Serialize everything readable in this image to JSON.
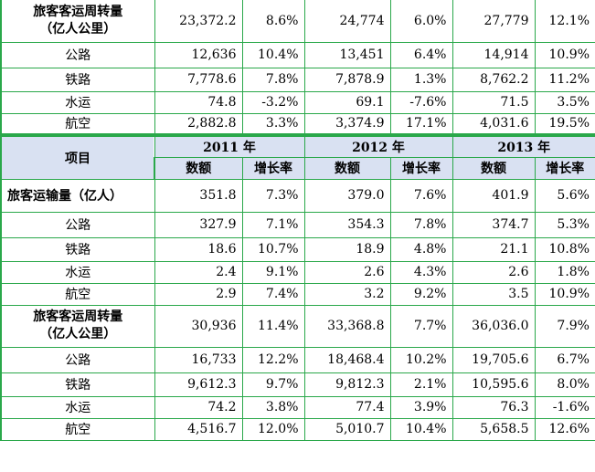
{
  "top_rows": [
    {
      "label": "旅客客运周转量\n（亿人公里）",
      "type": "group2",
      "v": [
        "23,372.2",
        "8.6%",
        "24,774",
        "6.0%",
        "27,779",
        "12.1%"
      ]
    },
    {
      "label": "公路",
      "type": "sub",
      "v": [
        "12,636",
        "10.4%",
        "13,451",
        "6.4%",
        "14,914",
        "10.9%"
      ]
    },
    {
      "label": "铁路",
      "type": "sub",
      "v": [
        "7,778.6",
        "7.8%",
        "7,878.9",
        "1.3%",
        "8,762.2",
        "11.2%"
      ]
    },
    {
      "label": "水运",
      "type": "sub",
      "v": [
        "74.8",
        "-3.2%",
        "69.1",
        "-7.6%",
        "71.5",
        "3.5%"
      ]
    },
    {
      "label": "航空",
      "type": "sub",
      "v": [
        "2,882.8",
        "3.3%",
        "3,374.9",
        "17.1%",
        "4,031.6",
        "19.5%"
      ]
    }
  ],
  "header": {
    "item": "项目",
    "years": [
      "2011 年",
      "2012 年",
      "2013 年"
    ],
    "amount": "数额",
    "growth": "增长率"
  },
  "bottom_rows": [
    {
      "label": "旅客运输量（亿人）",
      "type": "group1",
      "v": [
        "351.8",
        "7.3%",
        "379.0",
        "7.6%",
        "401.9",
        "5.6%"
      ]
    },
    {
      "label": "公路",
      "type": "sub",
      "v": [
        "327.9",
        "7.1%",
        "354.3",
        "7.8%",
        "374.7",
        "5.3%"
      ]
    },
    {
      "label": "铁路",
      "type": "sub",
      "v": [
        "18.6",
        "10.7%",
        "18.9",
        "4.8%",
        "21.1",
        "10.8%"
      ]
    },
    {
      "label": "水运",
      "type": "sub",
      "v": [
        "2.4",
        "9.1%",
        "2.6",
        "4.3%",
        "2.6",
        "1.8%"
      ]
    },
    {
      "label": "航空",
      "type": "sub",
      "v": [
        "2.9",
        "7.4%",
        "3.2",
        "9.2%",
        "3.5",
        "10.9%"
      ]
    },
    {
      "label": "旅客客运周转量\n（亿人公里）",
      "type": "group2",
      "v": [
        "30,936",
        "11.4%",
        "33,368.8",
        "7.7%",
        "36,036.0",
        "7.9%"
      ]
    },
    {
      "label": "公路",
      "type": "sub",
      "v": [
        "16,733",
        "12.2%",
        "18,468.4",
        "10.2%",
        "19,705.6",
        "6.7%"
      ]
    },
    {
      "label": "铁路",
      "type": "sub",
      "v": [
        "9,612.3",
        "9.7%",
        "9,812.3",
        "2.1%",
        "10,595.6",
        "8.0%"
      ]
    },
    {
      "label": "水运",
      "type": "sub",
      "v": [
        "74.2",
        "3.8%",
        "77.4",
        "3.9%",
        "76.3",
        "-1.6%"
      ]
    },
    {
      "label": "航空",
      "type": "sub",
      "v": [
        "4,516.7",
        "12.0%",
        "5,010.7",
        "10.4%",
        "5,658.5",
        "12.6%"
      ]
    }
  ],
  "colors": {
    "border": "#2aa84a",
    "header_bg": "#d9e1f2"
  }
}
